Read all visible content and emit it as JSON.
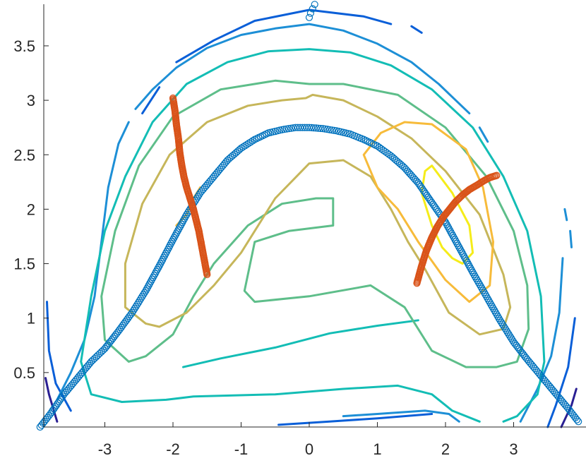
{
  "chart_data": {
    "type": "scatter",
    "title": "",
    "xlabel": "",
    "ylabel": "",
    "xlim": [
      -3.95,
      4.0
    ],
    "ylim": [
      0.0,
      3.9
    ],
    "xticks": [
      -3,
      -2,
      -1,
      0,
      1,
      2,
      3
    ],
    "xtick_labels": [
      "-3",
      "-2",
      "-1",
      "0",
      "1",
      "2",
      "3"
    ],
    "yticks": [
      0.5,
      1,
      1.5,
      2,
      2.5,
      3,
      3.5
    ],
    "ytick_labels": [
      "0.5",
      "1",
      "1.5",
      "2",
      "2.5",
      "3",
      "3.5"
    ],
    "grid": false,
    "contours": [
      {
        "color": "#2a1f93",
        "segments": [
          [
            [
              -3.87,
              0.45
            ],
            [
              -3.82,
              0.3
            ],
            [
              -3.7,
              0.05
            ]
          ],
          [
            [
              3.92,
              0.35
            ],
            [
              3.85,
              0.2
            ],
            [
              3.7,
              0.0
            ]
          ]
        ]
      },
      {
        "color": "#0a5fd8",
        "segments": [
          [
            [
              -3.85,
              1.15
            ],
            [
              -3.82,
              0.7
            ],
            [
              -3.72,
              0.4
            ],
            [
              -3.5,
              0.15
            ]
          ],
          [
            [
              -2.45,
              2.88
            ],
            [
              -2.2,
              3.12
            ]
          ],
          [
            [
              -1.95,
              3.35
            ],
            [
              -1.4,
              3.55
            ],
            [
              -0.8,
              3.73
            ],
            [
              0.0,
              3.83
            ],
            [
              0.8,
              3.77
            ],
            [
              1.2,
              3.7
            ]
          ],
          [
            [
              3.9,
              1.0
            ],
            [
              3.8,
              0.55
            ],
            [
              3.62,
              0.2
            ],
            [
              3.5,
              0.0
            ]
          ],
          [
            [
              -0.45,
              0.02
            ],
            [
              0.3,
              0.05
            ],
            [
              1.0,
              0.08
            ],
            [
              1.4,
              0.1
            ],
            [
              1.8,
              0.12
            ]
          ],
          [
            [
              1.5,
              3.68
            ],
            [
              1.65,
              3.62
            ]
          ]
        ]
      },
      {
        "color": "#1d8fd6",
        "segments": [
          [
            [
              -3.7,
              0.25
            ],
            [
              -3.5,
              0.5
            ],
            [
              -3.3,
              0.8
            ],
            [
              -3.15,
              1.2
            ],
            [
              -3.05,
              1.7
            ],
            [
              -2.95,
              2.2
            ],
            [
              -2.8,
              2.6
            ],
            [
              -2.65,
              2.8
            ]
          ],
          [
            [
              -2.55,
              2.92
            ],
            [
              -2.3,
              3.1
            ],
            [
              -1.95,
              3.3
            ],
            [
              -1.5,
              3.48
            ],
            [
              -1.0,
              3.6
            ],
            [
              -0.5,
              3.66
            ],
            [
              0.0,
              3.7
            ],
            [
              0.5,
              3.64
            ],
            [
              1.0,
              3.52
            ],
            [
              1.5,
              3.35
            ],
            [
              1.9,
              3.15
            ],
            [
              2.35,
              2.88
            ]
          ],
          [
            [
              2.5,
              2.75
            ],
            [
              2.62,
              2.62
            ]
          ],
          [
            [
              3.72,
              1.55
            ],
            [
              3.67,
              1.05
            ],
            [
              3.55,
              0.65
            ],
            [
              3.35,
              0.35
            ],
            [
              3.1,
              0.05
            ]
          ],
          [
            [
              2.2,
              0.05
            ],
            [
              2.05,
              0.12
            ],
            [
              1.7,
              0.15
            ],
            [
              1.0,
              0.12
            ],
            [
              0.5,
              0.1
            ]
          ],
          [
            [
              3.75,
              2.0
            ],
            [
              3.78,
              1.9
            ]
          ],
          [
            [
              3.83,
              1.8
            ],
            [
              3.85,
              1.65
            ]
          ]
        ]
      },
      {
        "color": "#13bdb5",
        "segments": [
          [
            [
              2.5,
              0.05
            ],
            [
              2.1,
              0.15
            ],
            [
              1.8,
              0.3
            ],
            [
              1.3,
              0.38
            ],
            [
              0.5,
              0.35
            ],
            [
              -0.5,
              0.3
            ],
            [
              -1.7,
              0.28
            ],
            [
              -2.1,
              0.25
            ],
            [
              -2.75,
              0.23
            ],
            [
              -3.2,
              0.3
            ],
            [
              -3.35,
              0.6
            ],
            [
              -3.2,
              1.2
            ],
            [
              -3.0,
              1.8
            ],
            [
              -2.7,
              2.3
            ],
            [
              -2.3,
              2.8
            ],
            [
              -1.8,
              3.15
            ],
            [
              -1.2,
              3.35
            ],
            [
              -0.6,
              3.45
            ],
            [
              0.0,
              3.47
            ],
            [
              0.6,
              3.44
            ],
            [
              1.2,
              3.32
            ],
            [
              1.8,
              3.1
            ],
            [
              2.4,
              2.75
            ],
            [
              2.85,
              2.3
            ],
            [
              3.2,
              1.8
            ],
            [
              3.4,
              1.2
            ],
            [
              3.45,
              0.6
            ],
            [
              3.35,
              0.3
            ],
            [
              3.05,
              0.1
            ],
            [
              2.85,
              0.05
            ]
          ],
          [
            [
              -1.85,
              0.55
            ],
            [
              -1.3,
              0.63
            ],
            [
              -0.5,
              0.73
            ],
            [
              0.3,
              0.86
            ],
            [
              1.0,
              0.93
            ],
            [
              1.6,
              0.98
            ]
          ]
        ]
      },
      {
        "color": "#5ebe8a",
        "segments": [
          [
            [
              -2.65,
              0.6
            ],
            [
              -3.0,
              0.8
            ],
            [
              -3.05,
              1.2
            ],
            [
              -2.85,
              1.8
            ],
            [
              -2.5,
              2.4
            ],
            [
              -2.0,
              2.85
            ],
            [
              -1.3,
              3.1
            ],
            [
              -0.5,
              3.18
            ],
            [
              0.0,
              3.15
            ],
            [
              0.5,
              3.15
            ],
            [
              1.3,
              3.05
            ],
            [
              2.0,
              2.75
            ],
            [
              2.6,
              2.3
            ],
            [
              3.0,
              1.8
            ],
            [
              3.2,
              1.3
            ],
            [
              3.22,
              0.9
            ],
            [
              3.05,
              0.6
            ],
            [
              2.75,
              0.55
            ],
            [
              2.3,
              0.55
            ],
            [
              1.8,
              0.7
            ],
            [
              1.4,
              1.1
            ],
            [
              0.9,
              1.3
            ],
            [
              0.0,
              1.2
            ],
            [
              -0.8,
              1.15
            ],
            [
              -0.95,
              1.25
            ],
            [
              -0.8,
              1.7
            ],
            [
              -0.3,
              1.8
            ],
            [
              0.35,
              1.85
            ],
            [
              0.35,
              2.1
            ],
            [
              0.1,
              2.1
            ],
            [
              -0.4,
              2.05
            ],
            [
              -0.9,
              1.85
            ],
            [
              -1.4,
              1.5
            ],
            [
              -1.7,
              1.2
            ],
            [
              -2.0,
              0.85
            ],
            [
              -2.4,
              0.65
            ],
            [
              -2.65,
              0.6
            ]
          ]
        ]
      },
      {
        "color": "#c6b65a",
        "segments": [
          [
            [
              -2.4,
              0.95
            ],
            [
              -2.7,
              1.1
            ],
            [
              -2.7,
              1.5
            ],
            [
              -2.45,
              2.05
            ],
            [
              -2.05,
              2.5
            ],
            [
              -1.5,
              2.8
            ],
            [
              -0.9,
              2.95
            ],
            [
              -0.4,
              3.0
            ],
            [
              -0.05,
              3.02
            ],
            [
              0.05,
              3.05
            ],
            [
              0.5,
              3.0
            ],
            [
              1.0,
              2.85
            ],
            [
              1.5,
              2.65
            ],
            [
              2.0,
              2.35
            ],
            [
              2.5,
              1.95
            ],
            [
              2.85,
              1.4
            ],
            [
              2.95,
              1.1
            ],
            [
              2.85,
              0.9
            ],
            [
              2.5,
              0.85
            ],
            [
              2.05,
              1.05
            ],
            [
              1.7,
              1.45
            ],
            [
              1.45,
              1.7
            ],
            [
              1.2,
              2.0
            ],
            [
              0.9,
              2.3
            ],
            [
              0.5,
              2.45
            ],
            [
              0.0,
              2.42
            ],
            [
              -0.5,
              2.1
            ],
            [
              -1.0,
              1.6
            ],
            [
              -1.4,
              1.3
            ],
            [
              -1.8,
              1.05
            ],
            [
              -2.2,
              0.92
            ],
            [
              -2.4,
              0.95
            ]
          ]
        ]
      },
      {
        "color": "#f7bb3a",
        "segments": [
          [
            [
              1.05,
              2.7
            ],
            [
              0.8,
              2.5
            ],
            [
              1.0,
              2.2
            ],
            [
              1.3,
              2.0
            ],
            [
              1.6,
              1.7
            ],
            [
              2.0,
              1.35
            ],
            [
              2.35,
              1.15
            ],
            [
              2.65,
              1.3
            ],
            [
              2.7,
              1.7
            ],
            [
              2.55,
              2.2
            ],
            [
              2.3,
              2.55
            ],
            [
              1.8,
              2.78
            ],
            [
              1.4,
              2.8
            ],
            [
              1.05,
              2.7
            ]
          ],
          [
            [
              -1.95,
              1.85
            ],
            [
              -1.8,
              1.95
            ],
            [
              -1.7,
              2.1
            ],
            [
              -1.6,
              2.2
            ]
          ]
        ]
      },
      {
        "color": "#f5ec1a",
        "segments": [
          [
            [
              1.7,
              2.35
            ],
            [
              1.8,
              2.4
            ],
            [
              2.1,
              2.15
            ],
            [
              2.35,
              1.85
            ],
            [
              2.4,
              1.6
            ],
            [
              2.25,
              1.5
            ],
            [
              2.1,
              1.55
            ],
            [
              1.95,
              1.65
            ],
            [
              1.8,
              1.85
            ],
            [
              1.65,
              2.15
            ],
            [
              1.7,
              2.35
            ]
          ]
        ]
      }
    ],
    "series": [
      {
        "marker_color": "#0072bd",
        "curve": "blue-arc",
        "x": [
          -3.95,
          -3.8,
          -3.6,
          -3.4,
          -3.2,
          -3.0,
          -2.8,
          -2.6,
          -2.4,
          -2.2,
          -2.0,
          -1.8,
          -1.6,
          -1.4,
          -1.2,
          -1.0,
          -0.8,
          -0.6,
          -0.4,
          -0.2,
          0.0,
          0.2,
          0.4,
          0.6,
          0.8,
          1.0,
          1.2,
          1.4,
          1.6,
          1.8,
          2.0,
          2.2,
          2.4,
          2.6,
          2.8,
          3.0,
          3.2,
          3.4,
          3.6,
          3.8,
          3.95
        ],
        "y": [
          0.0,
          0.12,
          0.3,
          0.45,
          0.6,
          0.72,
          0.88,
          1.05,
          1.25,
          1.48,
          1.72,
          1.95,
          2.15,
          2.3,
          2.45,
          2.56,
          2.64,
          2.7,
          2.73,
          2.75,
          2.75,
          2.74,
          2.72,
          2.69,
          2.64,
          2.58,
          2.49,
          2.38,
          2.24,
          2.06,
          1.88,
          1.65,
          1.42,
          1.2,
          0.98,
          0.78,
          0.62,
          0.47,
          0.32,
          0.17,
          0.05
        ]
      },
      {
        "marker_color": "#0072bd",
        "curve": "top-cluster",
        "x": [
          0.0,
          0.02,
          0.05,
          0.08
        ],
        "y": [
          3.76,
          3.8,
          3.84,
          3.88
        ]
      },
      {
        "marker_color": "#d95319",
        "curve": "left-orange",
        "x": [
          -2.0,
          -1.97,
          -1.95,
          -1.92,
          -1.9,
          -1.87,
          -1.84,
          -1.8,
          -1.75,
          -1.7,
          -1.66,
          -1.62,
          -1.59,
          -1.56,
          -1.53,
          -1.5
        ],
        "y": [
          3.02,
          2.9,
          2.78,
          2.65,
          2.52,
          2.4,
          2.3,
          2.2,
          2.1,
          2.0,
          1.9,
          1.8,
          1.7,
          1.6,
          1.5,
          1.4
        ]
      },
      {
        "marker_color": "#d95319",
        "curve": "right-orange",
        "x": [
          1.58,
          1.65,
          1.72,
          1.8,
          1.88,
          1.97,
          2.06,
          2.15,
          2.25,
          2.35,
          2.46,
          2.56,
          2.65,
          2.75
        ],
        "y": [
          1.32,
          1.48,
          1.62,
          1.74,
          1.84,
          1.93,
          2.0,
          2.07,
          2.13,
          2.18,
          2.22,
          2.26,
          2.29,
          2.31
        ]
      }
    ]
  }
}
